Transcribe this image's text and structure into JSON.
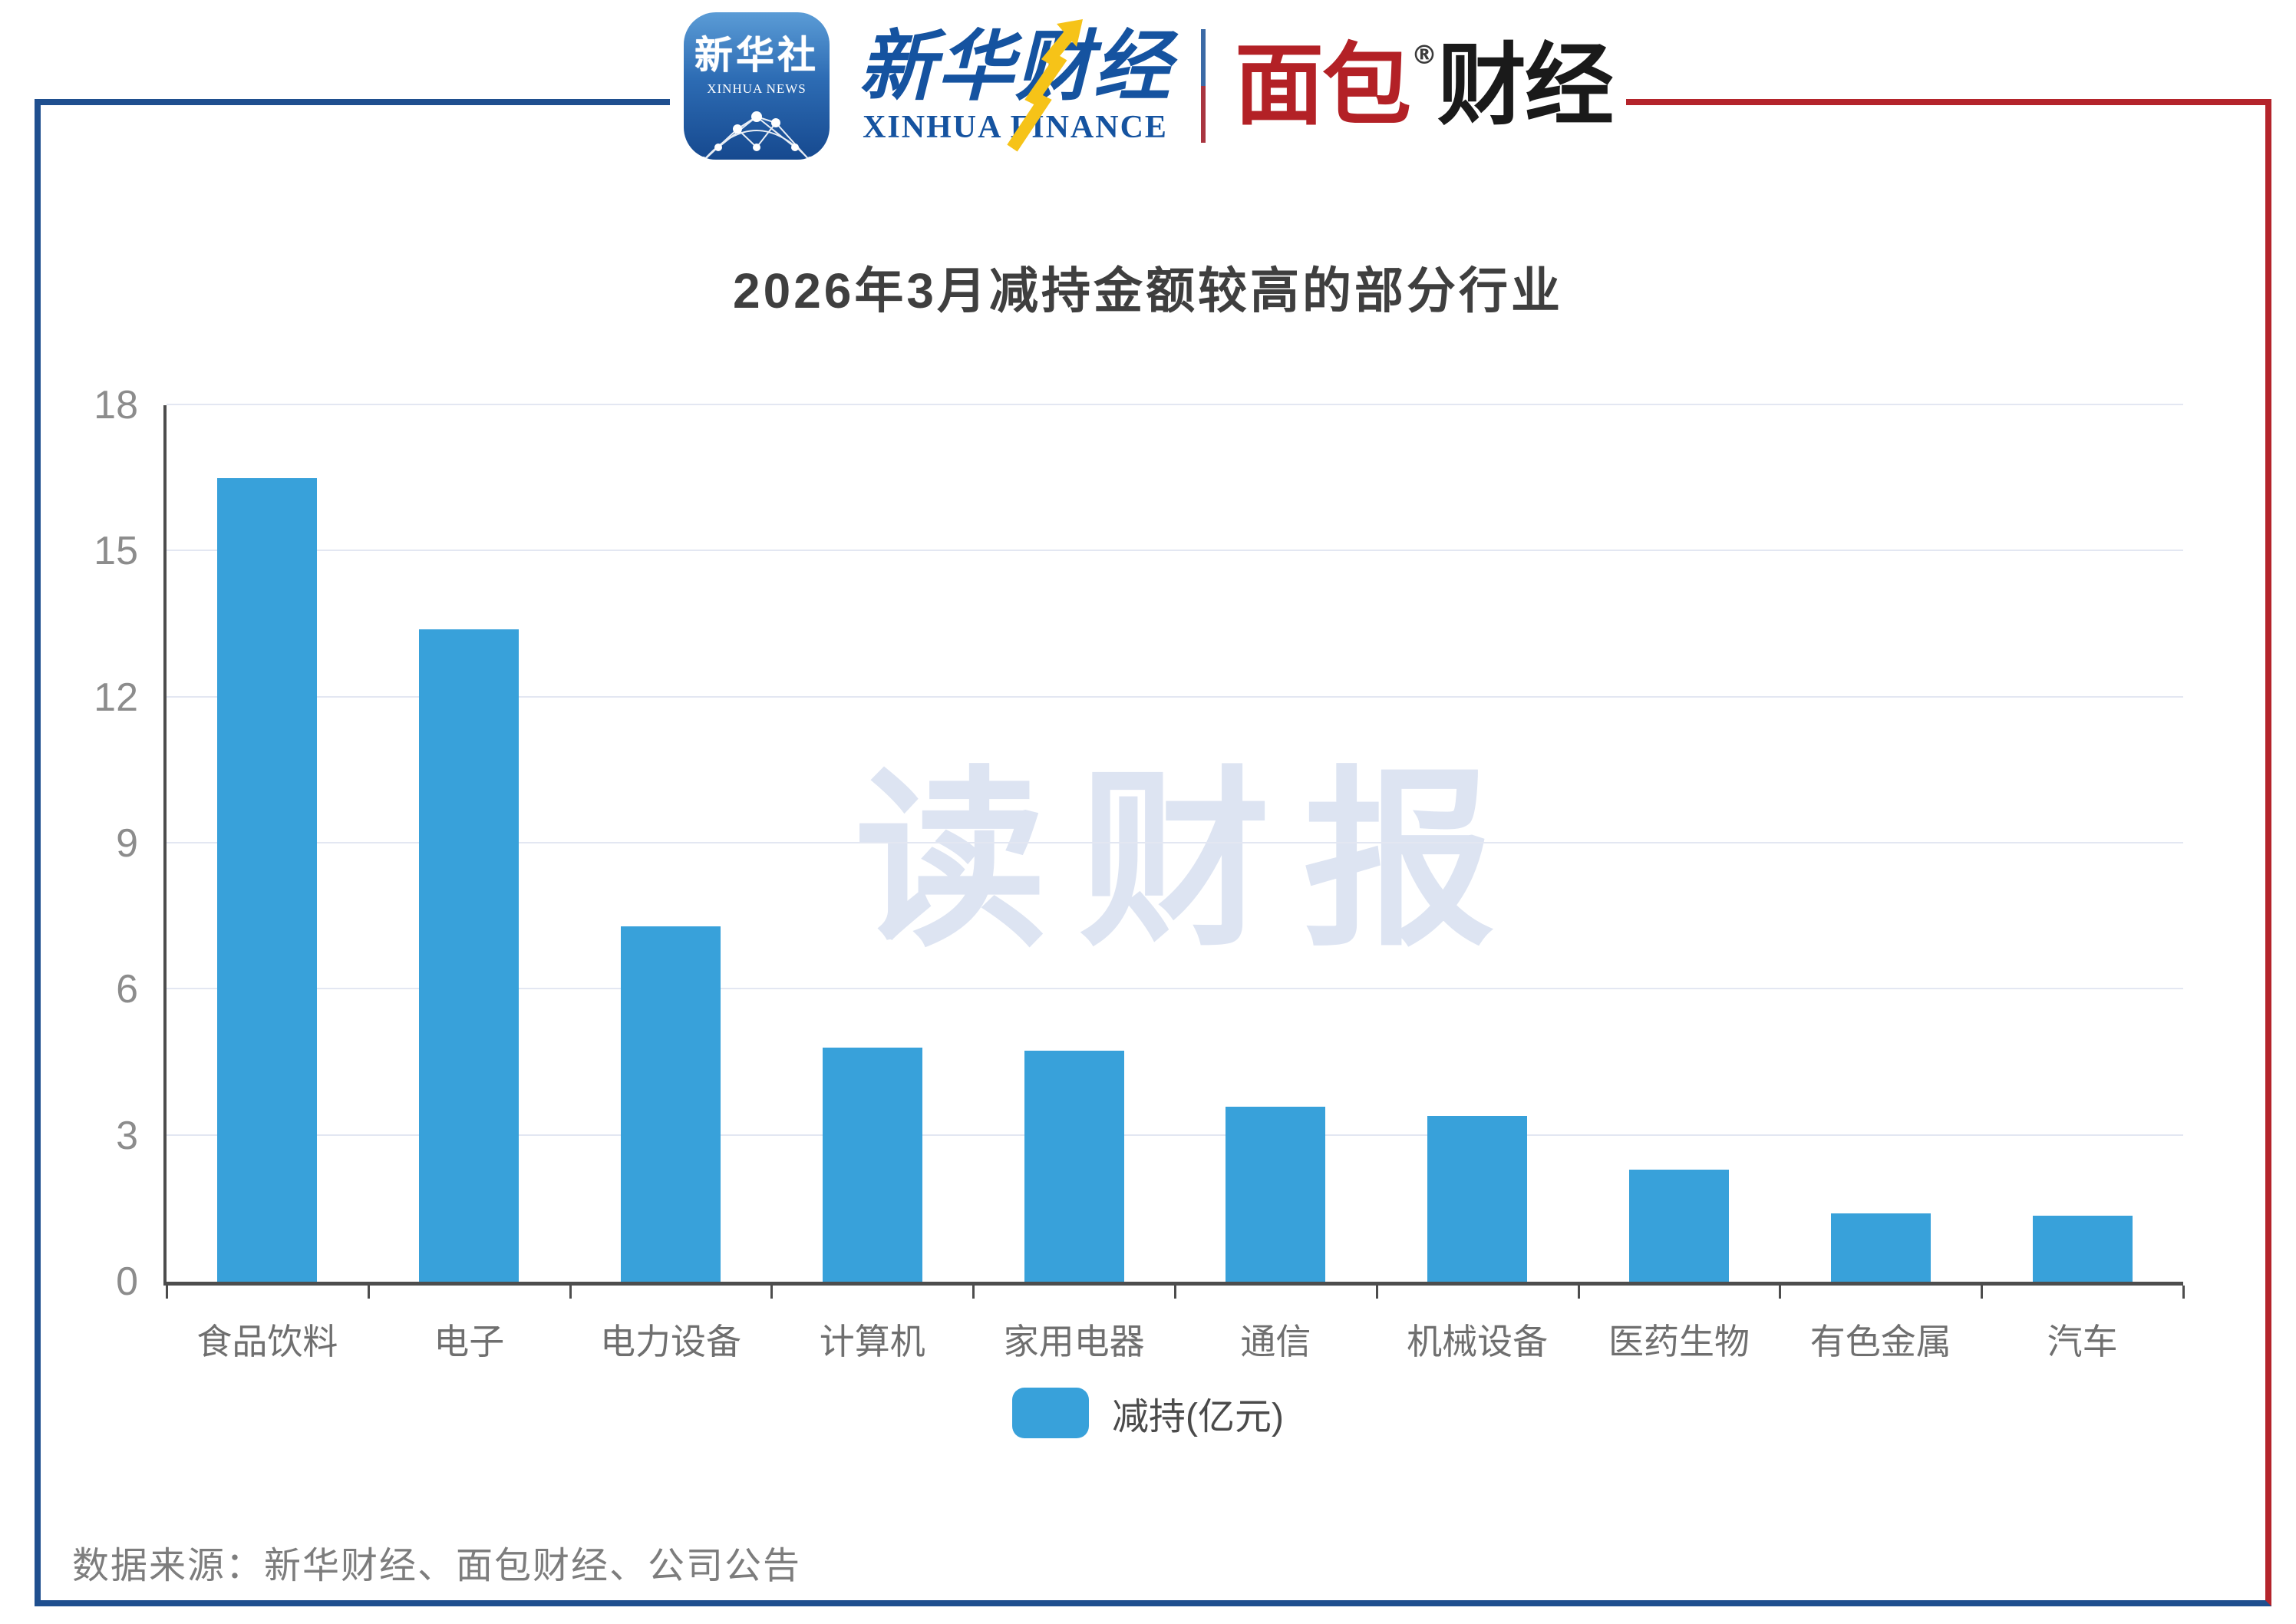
{
  "header": {
    "xinhua_news": {
      "title": "新华社",
      "subtitle": "XINHUA NEWS"
    },
    "xinhua_finance": {
      "title": "新华财经",
      "subtitle": "XINHUA FINANCE"
    },
    "bread_finance": {
      "part_red": "面包",
      "part_black": "财经",
      "registered_mark": "®"
    }
  },
  "watermark": "读财报",
  "chart_data": {
    "type": "bar",
    "title": "2026年3月减持金额较高的部分行业",
    "categories": [
      "食品饮料",
      "电子",
      "电力设备",
      "计算机",
      "家用电器",
      "通信",
      "机械设备",
      "医药生物",
      "有色金属",
      "汽车"
    ],
    "series": [
      {
        "name": "减持(亿元)",
        "values": [
          16.5,
          13.4,
          7.3,
          4.8,
          4.75,
          3.6,
          3.4,
          2.3,
          1.4,
          1.35
        ]
      }
    ],
    "xlabel": "",
    "ylabel": "",
    "ylim": [
      0,
      18
    ],
    "yticks": [
      0,
      3,
      6,
      9,
      12,
      15,
      18
    ],
    "bar_color": "#38a1da",
    "grid": true,
    "legend_position": "bottom"
  },
  "legend": {
    "label": "减持(亿元)",
    "swatch_color": "#38a1da"
  },
  "footer": {
    "source": "数据来源：新华财经、面包财经、公司公告"
  },
  "colors": {
    "frame_blue": "#1f4f8f",
    "frame_red": "#b4242b",
    "bar_blue": "#38a1da"
  }
}
